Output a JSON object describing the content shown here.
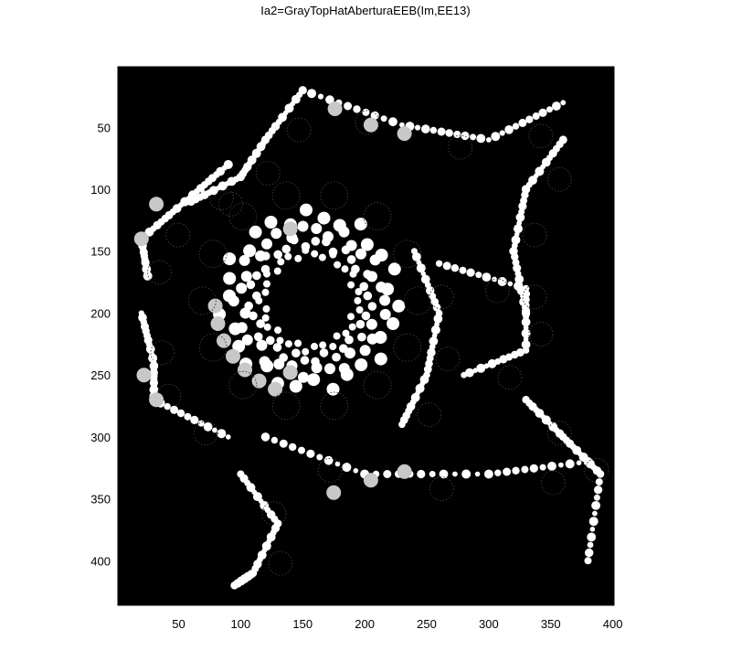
{
  "chart_data": {
    "type": "heatmap",
    "title": "Ia2=GrayTopHatAberturaEEB(Im,EE13)",
    "colormap": "gray",
    "background_color": "#000000",
    "xlim": [
      1,
      401
    ],
    "ylim": [
      1,
      436
    ],
    "x_ticks": [
      50,
      100,
      150,
      200,
      250,
      300,
      350,
      400
    ],
    "y_ticks": [
      50,
      100,
      150,
      200,
      250,
      300,
      350,
      400
    ],
    "x_tick_labels": [
      "50",
      "100",
      "150",
      "200",
      "250",
      "300",
      "350",
      "400"
    ],
    "y_tick_labels": [
      "50",
      "100",
      "150",
      "200",
      "250",
      "300",
      "350",
      "400"
    ],
    "grid": false
  }
}
